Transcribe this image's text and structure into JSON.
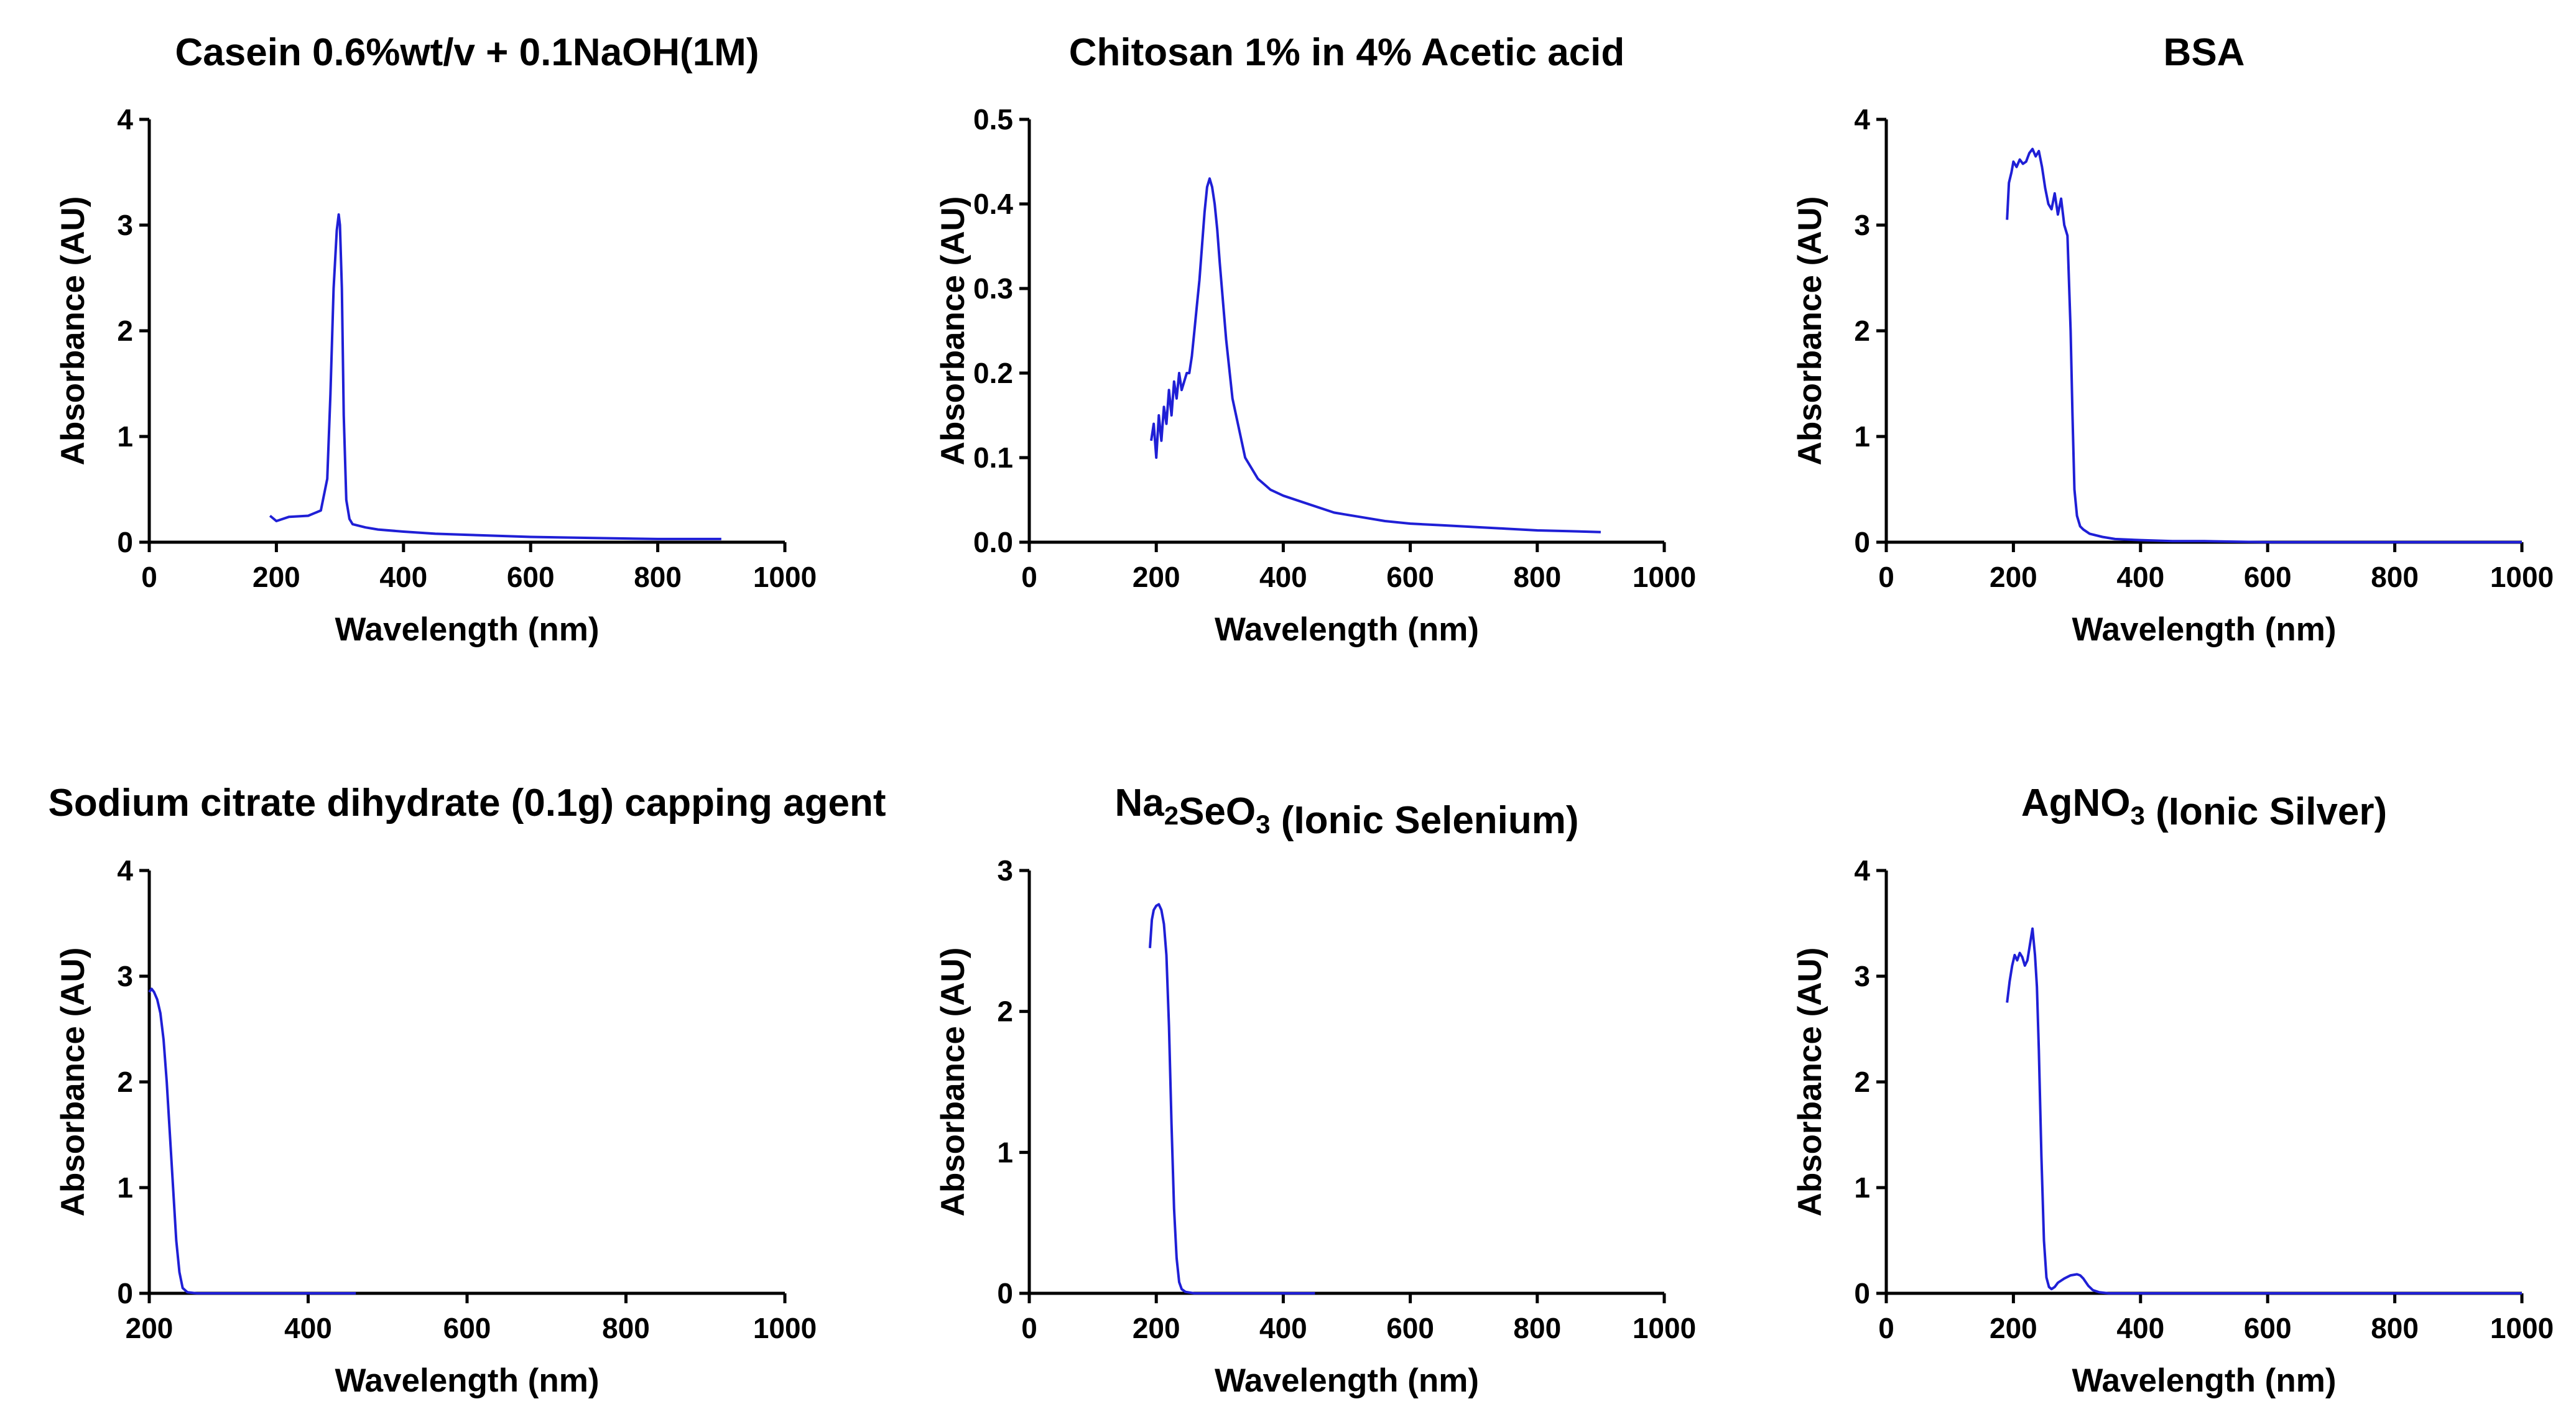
{
  "chart_data": [
    {
      "type": "line",
      "title": "Casein 0.6%wt/v + 0.1NaOH(1M)",
      "xlabel": "Wavelength (nm)",
      "ylabel": "Absorbance (AU)",
      "xlim": [
        0,
        1000
      ],
      "ylim": [
        0,
        4
      ],
      "xticks": [
        0,
        200,
        400,
        600,
        800,
        1000
      ],
      "yticks": [
        0,
        1,
        2,
        3,
        4
      ],
      "grid": false,
      "series": [
        {
          "color": "#1f1fd6",
          "x": [
            190,
            200,
            220,
            250,
            270,
            280,
            285,
            290,
            295,
            298,
            300,
            303,
            306,
            310,
            315,
            320,
            340,
            360,
            400,
            450,
            500,
            600,
            700,
            800,
            900
          ],
          "y": [
            0.25,
            0.2,
            0.24,
            0.25,
            0.3,
            0.6,
            1.4,
            2.4,
            2.95,
            3.1,
            3.0,
            2.4,
            1.2,
            0.4,
            0.22,
            0.17,
            0.14,
            0.12,
            0.1,
            0.08,
            0.07,
            0.05,
            0.04,
            0.03,
            0.03
          ]
        }
      ]
    },
    {
      "type": "line",
      "title": "Chitosan 1% in 4% Acetic acid",
      "xlabel": "Wavelength (nm)",
      "ylabel": "Absorbance (AU)",
      "xlim": [
        0,
        1000
      ],
      "ylim": [
        0,
        0.5
      ],
      "xticks": [
        0,
        200,
        400,
        600,
        800,
        1000
      ],
      "ytick_labels": [
        "0.0",
        "0.1",
        "0.2",
        "0.3",
        "0.4",
        "0.5"
      ],
      "yticks": [
        0,
        0.1,
        0.2,
        0.3,
        0.4,
        0.5
      ],
      "grid": false,
      "series": [
        {
          "color": "#1f1fd6",
          "x": [
            192,
            196,
            200,
            204,
            208,
            212,
            216,
            220,
            224,
            228,
            232,
            236,
            240,
            244,
            248,
            252,
            256,
            260,
            264,
            268,
            272,
            276,
            280,
            284,
            288,
            292,
            296,
            300,
            310,
            320,
            340,
            360,
            380,
            400,
            440,
            480,
            520,
            560,
            600,
            650,
            700,
            750,
            800,
            850,
            900
          ],
          "y": [
            0.12,
            0.14,
            0.1,
            0.15,
            0.12,
            0.16,
            0.14,
            0.18,
            0.15,
            0.19,
            0.17,
            0.2,
            0.18,
            0.19,
            0.2,
            0.2,
            0.22,
            0.25,
            0.28,
            0.31,
            0.35,
            0.39,
            0.42,
            0.43,
            0.42,
            0.4,
            0.37,
            0.33,
            0.24,
            0.17,
            0.1,
            0.075,
            0.062,
            0.055,
            0.045,
            0.035,
            0.03,
            0.025,
            0.022,
            0.02,
            0.018,
            0.016,
            0.014,
            0.013,
            0.012
          ]
        }
      ]
    },
    {
      "type": "line",
      "title": "BSA",
      "xlabel": "Wavelength (nm)",
      "ylabel": "Absorbance (AU)",
      "xlim": [
        0,
        1000
      ],
      "ylim": [
        0,
        4
      ],
      "xticks": [
        0,
        200,
        400,
        600,
        800,
        1000
      ],
      "yticks": [
        0,
        1,
        2,
        3,
        4
      ],
      "grid": false,
      "series": [
        {
          "color": "#1f1fd6",
          "x": [
            190,
            193,
            197,
            200,
            205,
            210,
            215,
            220,
            225,
            230,
            235,
            240,
            245,
            250,
            255,
            260,
            265,
            270,
            275,
            280,
            285,
            290,
            293,
            296,
            300,
            305,
            310,
            320,
            340,
            360,
            400,
            450,
            500,
            600,
            800,
            1000
          ],
          "y": [
            3.05,
            3.4,
            3.5,
            3.6,
            3.55,
            3.62,
            3.58,
            3.6,
            3.68,
            3.72,
            3.65,
            3.7,
            3.55,
            3.35,
            3.2,
            3.15,
            3.3,
            3.1,
            3.25,
            3.0,
            2.9,
            2.0,
            1.2,
            0.5,
            0.25,
            0.15,
            0.12,
            0.08,
            0.05,
            0.03,
            0.02,
            0.01,
            0.01,
            0.0,
            0.0,
            0.0
          ]
        }
      ]
    },
    {
      "type": "line",
      "title": "Sodium citrate dihydrate (0.1g) capping agent",
      "xlabel": "Wavelength (nm)",
      "ylabel": "Absorbance (AU)",
      "xlim": [
        200,
        1000
      ],
      "ylim": [
        0,
        4
      ],
      "xticks": [
        200,
        400,
        600,
        800,
        1000
      ],
      "yticks": [
        0,
        1,
        2,
        3,
        4
      ],
      "grid": false,
      "series": [
        {
          "color": "#1f1fd6",
          "x": [
            200,
            203,
            206,
            210,
            214,
            218,
            222,
            226,
            230,
            234,
            238,
            242,
            248,
            260,
            300,
            400,
            460
          ],
          "y": [
            2.85,
            2.88,
            2.85,
            2.78,
            2.65,
            2.4,
            2.0,
            1.5,
            1.0,
            0.5,
            0.2,
            0.05,
            0.01,
            0.0,
            0.0,
            0.0,
            0.0
          ]
        }
      ]
    },
    {
      "type": "line",
      "title": "Na2SeO3 (Ionic Selenium)",
      "title_parts": {
        "pre": "Na",
        "sub1": "2",
        "mid": "SeO",
        "sub2": "3",
        "post": " (Ionic Selenium)"
      },
      "xlabel": "Wavelength (nm)",
      "ylabel": "Absorbance (AU)",
      "xlim": [
        0,
        1000
      ],
      "ylim": [
        0,
        3
      ],
      "xticks": [
        0,
        200,
        400,
        600,
        800,
        1000
      ],
      "yticks": [
        0,
        1,
        2,
        3
      ],
      "grid": false,
      "series": [
        {
          "color": "#1f1fd6",
          "x": [
            190,
            193,
            196,
            200,
            204,
            208,
            212,
            216,
            220,
            224,
            228,
            232,
            236,
            240,
            246,
            260,
            300,
            350,
            400,
            450
          ],
          "y": [
            2.45,
            2.65,
            2.72,
            2.75,
            2.76,
            2.72,
            2.62,
            2.4,
            1.9,
            1.2,
            0.6,
            0.25,
            0.08,
            0.03,
            0.01,
            0.0,
            0.0,
            0.0,
            0.0,
            0.0
          ]
        }
      ]
    },
    {
      "type": "line",
      "title": "AgNO3 (Ionic Silver)",
      "title_parts": {
        "pre": "AgNO",
        "sub1": "3",
        "mid": "",
        "sub2": "",
        "post": " (Ionic Silver)"
      },
      "xlabel": "Wavelength (nm)",
      "ylabel": "Absorbance (AU)",
      "xlim": [
        0,
        1000
      ],
      "ylim": [
        0,
        4
      ],
      "xticks": [
        0,
        200,
        400,
        600,
        800,
        1000
      ],
      "yticks": [
        0,
        1,
        2,
        3,
        4
      ],
      "grid": false,
      "series": [
        {
          "color": "#1f1fd6",
          "x": [
            190,
            194,
            198,
            202,
            206,
            210,
            214,
            218,
            222,
            226,
            230,
            234,
            237,
            240,
            244,
            248,
            252,
            256,
            260,
            265,
            270,
            280,
            290,
            300,
            305,
            310,
            318,
            325,
            335,
            350,
            400,
            500,
            700,
            1000
          ],
          "y": [
            2.75,
            2.95,
            3.1,
            3.2,
            3.15,
            3.22,
            3.18,
            3.1,
            3.15,
            3.3,
            3.45,
            3.2,
            2.9,
            2.3,
            1.3,
            0.5,
            0.15,
            0.06,
            0.04,
            0.06,
            0.1,
            0.14,
            0.17,
            0.18,
            0.17,
            0.14,
            0.07,
            0.03,
            0.01,
            0.0,
            0.0,
            0.0,
            0.0,
            0.0
          ]
        }
      ]
    }
  ]
}
